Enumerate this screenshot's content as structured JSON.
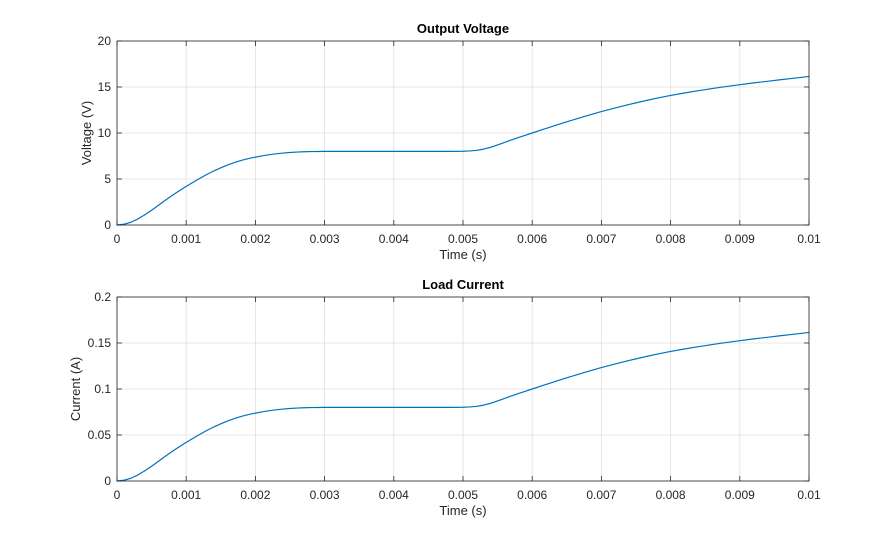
{
  "window": {
    "background_color": "#ffffff"
  },
  "chart_data": [
    {
      "type": "line",
      "title": "Output Voltage",
      "xlabel": "Time (s)",
      "ylabel": "Voltage (V)",
      "xlim": [
        0,
        0.01
      ],
      "ylim": [
        0,
        20
      ],
      "xticks": [
        0,
        0.001,
        0.002,
        0.003,
        0.004,
        0.005,
        0.006,
        0.007,
        0.008,
        0.009,
        0.01
      ],
      "xtick_labels": [
        "0",
        "0.001",
        "0.002",
        "0.003",
        "0.004",
        "0.005",
        "0.006",
        "0.007",
        "0.008",
        "0.009",
        "0.01"
      ],
      "yticks": [
        0,
        5,
        10,
        15,
        20
      ],
      "ytick_labels": [
        "0",
        "5",
        "10",
        "15",
        "20"
      ],
      "grid": true,
      "line_color": "#0072BD",
      "series": [
        {
          "x": [
            0,
            0.0001,
            0.0002,
            0.0003,
            0.0004,
            0.0005,
            0.0006,
            0.0007,
            0.0008,
            0.0009,
            0.001,
            0.0011,
            0.0012,
            0.0013,
            0.0014,
            0.0015,
            0.0016,
            0.0017,
            0.0018,
            0.0019,
            0.002,
            0.0021,
            0.0022,
            0.0023,
            0.0024,
            0.0025,
            0.0026,
            0.0027,
            0.0028,
            0.0029,
            0.003,
            0.0032,
            0.0034,
            0.0036,
            0.0038,
            0.004,
            0.0042,
            0.0044,
            0.0046,
            0.0048,
            0.005,
            0.0051,
            0.0052,
            0.0053,
            0.0054,
            0.0055,
            0.0056,
            0.0057,
            0.0058,
            0.0059,
            0.006,
            0.0062,
            0.0064,
            0.0066,
            0.0068,
            0.007,
            0.0072,
            0.0074,
            0.0076,
            0.0078,
            0.008,
            0.0082,
            0.0084,
            0.0086,
            0.0088,
            0.009,
            0.0092,
            0.0094,
            0.0096,
            0.0098,
            0.01
          ],
          "y": [
            0,
            0.08,
            0.3,
            0.65,
            1.1,
            1.6,
            2.15,
            2.7,
            3.22,
            3.72,
            4.2,
            4.65,
            5.08,
            5.5,
            5.88,
            6.22,
            6.53,
            6.8,
            7.03,
            7.22,
            7.38,
            7.52,
            7.64,
            7.74,
            7.82,
            7.88,
            7.93,
            7.96,
            7.98,
            7.99,
            8.0,
            8.0,
            8.0,
            8.0,
            8.0,
            8.0,
            8.0,
            8.0,
            8.0,
            8.0,
            8.02,
            8.05,
            8.12,
            8.25,
            8.45,
            8.7,
            8.98,
            9.25,
            9.5,
            9.75,
            10.0,
            10.5,
            10.98,
            11.45,
            11.9,
            12.33,
            12.72,
            13.1,
            13.45,
            13.78,
            14.08,
            14.35,
            14.6,
            14.83,
            15.05,
            15.25,
            15.45,
            15.62,
            15.8,
            15.97,
            16.15
          ]
        }
      ]
    },
    {
      "type": "line",
      "title": "Load Current",
      "xlabel": "Time (s)",
      "ylabel": "Current (A)",
      "xlim": [
        0,
        0.01
      ],
      "ylim": [
        0,
        0.2
      ],
      "xticks": [
        0,
        0.001,
        0.002,
        0.003,
        0.004,
        0.005,
        0.006,
        0.007,
        0.008,
        0.009,
        0.01
      ],
      "xtick_labels": [
        "0",
        "0.001",
        "0.002",
        "0.003",
        "0.004",
        "0.005",
        "0.006",
        "0.007",
        "0.008",
        "0.009",
        "0.01"
      ],
      "yticks": [
        0,
        0.05,
        0.1,
        0.15,
        0.2
      ],
      "ytick_labels": [
        "0",
        "0.05",
        "0.1",
        "0.15",
        "0.2"
      ],
      "grid": true,
      "line_color": "#0072BD",
      "series": [
        {
          "x": [
            0,
            0.0001,
            0.0002,
            0.0003,
            0.0004,
            0.0005,
            0.0006,
            0.0007,
            0.0008,
            0.0009,
            0.001,
            0.0011,
            0.0012,
            0.0013,
            0.0014,
            0.0015,
            0.0016,
            0.0017,
            0.0018,
            0.0019,
            0.002,
            0.0021,
            0.0022,
            0.0023,
            0.0024,
            0.0025,
            0.0026,
            0.0027,
            0.0028,
            0.0029,
            0.003,
            0.0032,
            0.0034,
            0.0036,
            0.0038,
            0.004,
            0.0042,
            0.0044,
            0.0046,
            0.0048,
            0.005,
            0.0051,
            0.0052,
            0.0053,
            0.0054,
            0.0055,
            0.0056,
            0.0057,
            0.0058,
            0.0059,
            0.006,
            0.0062,
            0.0064,
            0.0066,
            0.0068,
            0.007,
            0.0072,
            0.0074,
            0.0076,
            0.0078,
            0.008,
            0.0082,
            0.0084,
            0.0086,
            0.0088,
            0.009,
            0.0092,
            0.0094,
            0.0096,
            0.0098,
            0.01
          ],
          "y": [
            0,
            0.0008,
            0.003,
            0.0065,
            0.011,
            0.016,
            0.0215,
            0.027,
            0.0322,
            0.0372,
            0.042,
            0.0465,
            0.0508,
            0.055,
            0.0588,
            0.0622,
            0.0653,
            0.068,
            0.0703,
            0.0722,
            0.0738,
            0.0752,
            0.0764,
            0.0774,
            0.0782,
            0.0788,
            0.0793,
            0.0796,
            0.0798,
            0.0799,
            0.08,
            0.08,
            0.08,
            0.08,
            0.08,
            0.08,
            0.08,
            0.08,
            0.08,
            0.08,
            0.0802,
            0.0805,
            0.0812,
            0.0825,
            0.0845,
            0.087,
            0.0898,
            0.0925,
            0.095,
            0.0975,
            0.1,
            0.105,
            0.1098,
            0.1145,
            0.119,
            0.1233,
            0.1272,
            0.131,
            0.1345,
            0.1378,
            0.1408,
            0.1435,
            0.146,
            0.1483,
            0.1505,
            0.1525,
            0.1545,
            0.1562,
            0.158,
            0.1597,
            0.1615
          ]
        }
      ]
    }
  ]
}
